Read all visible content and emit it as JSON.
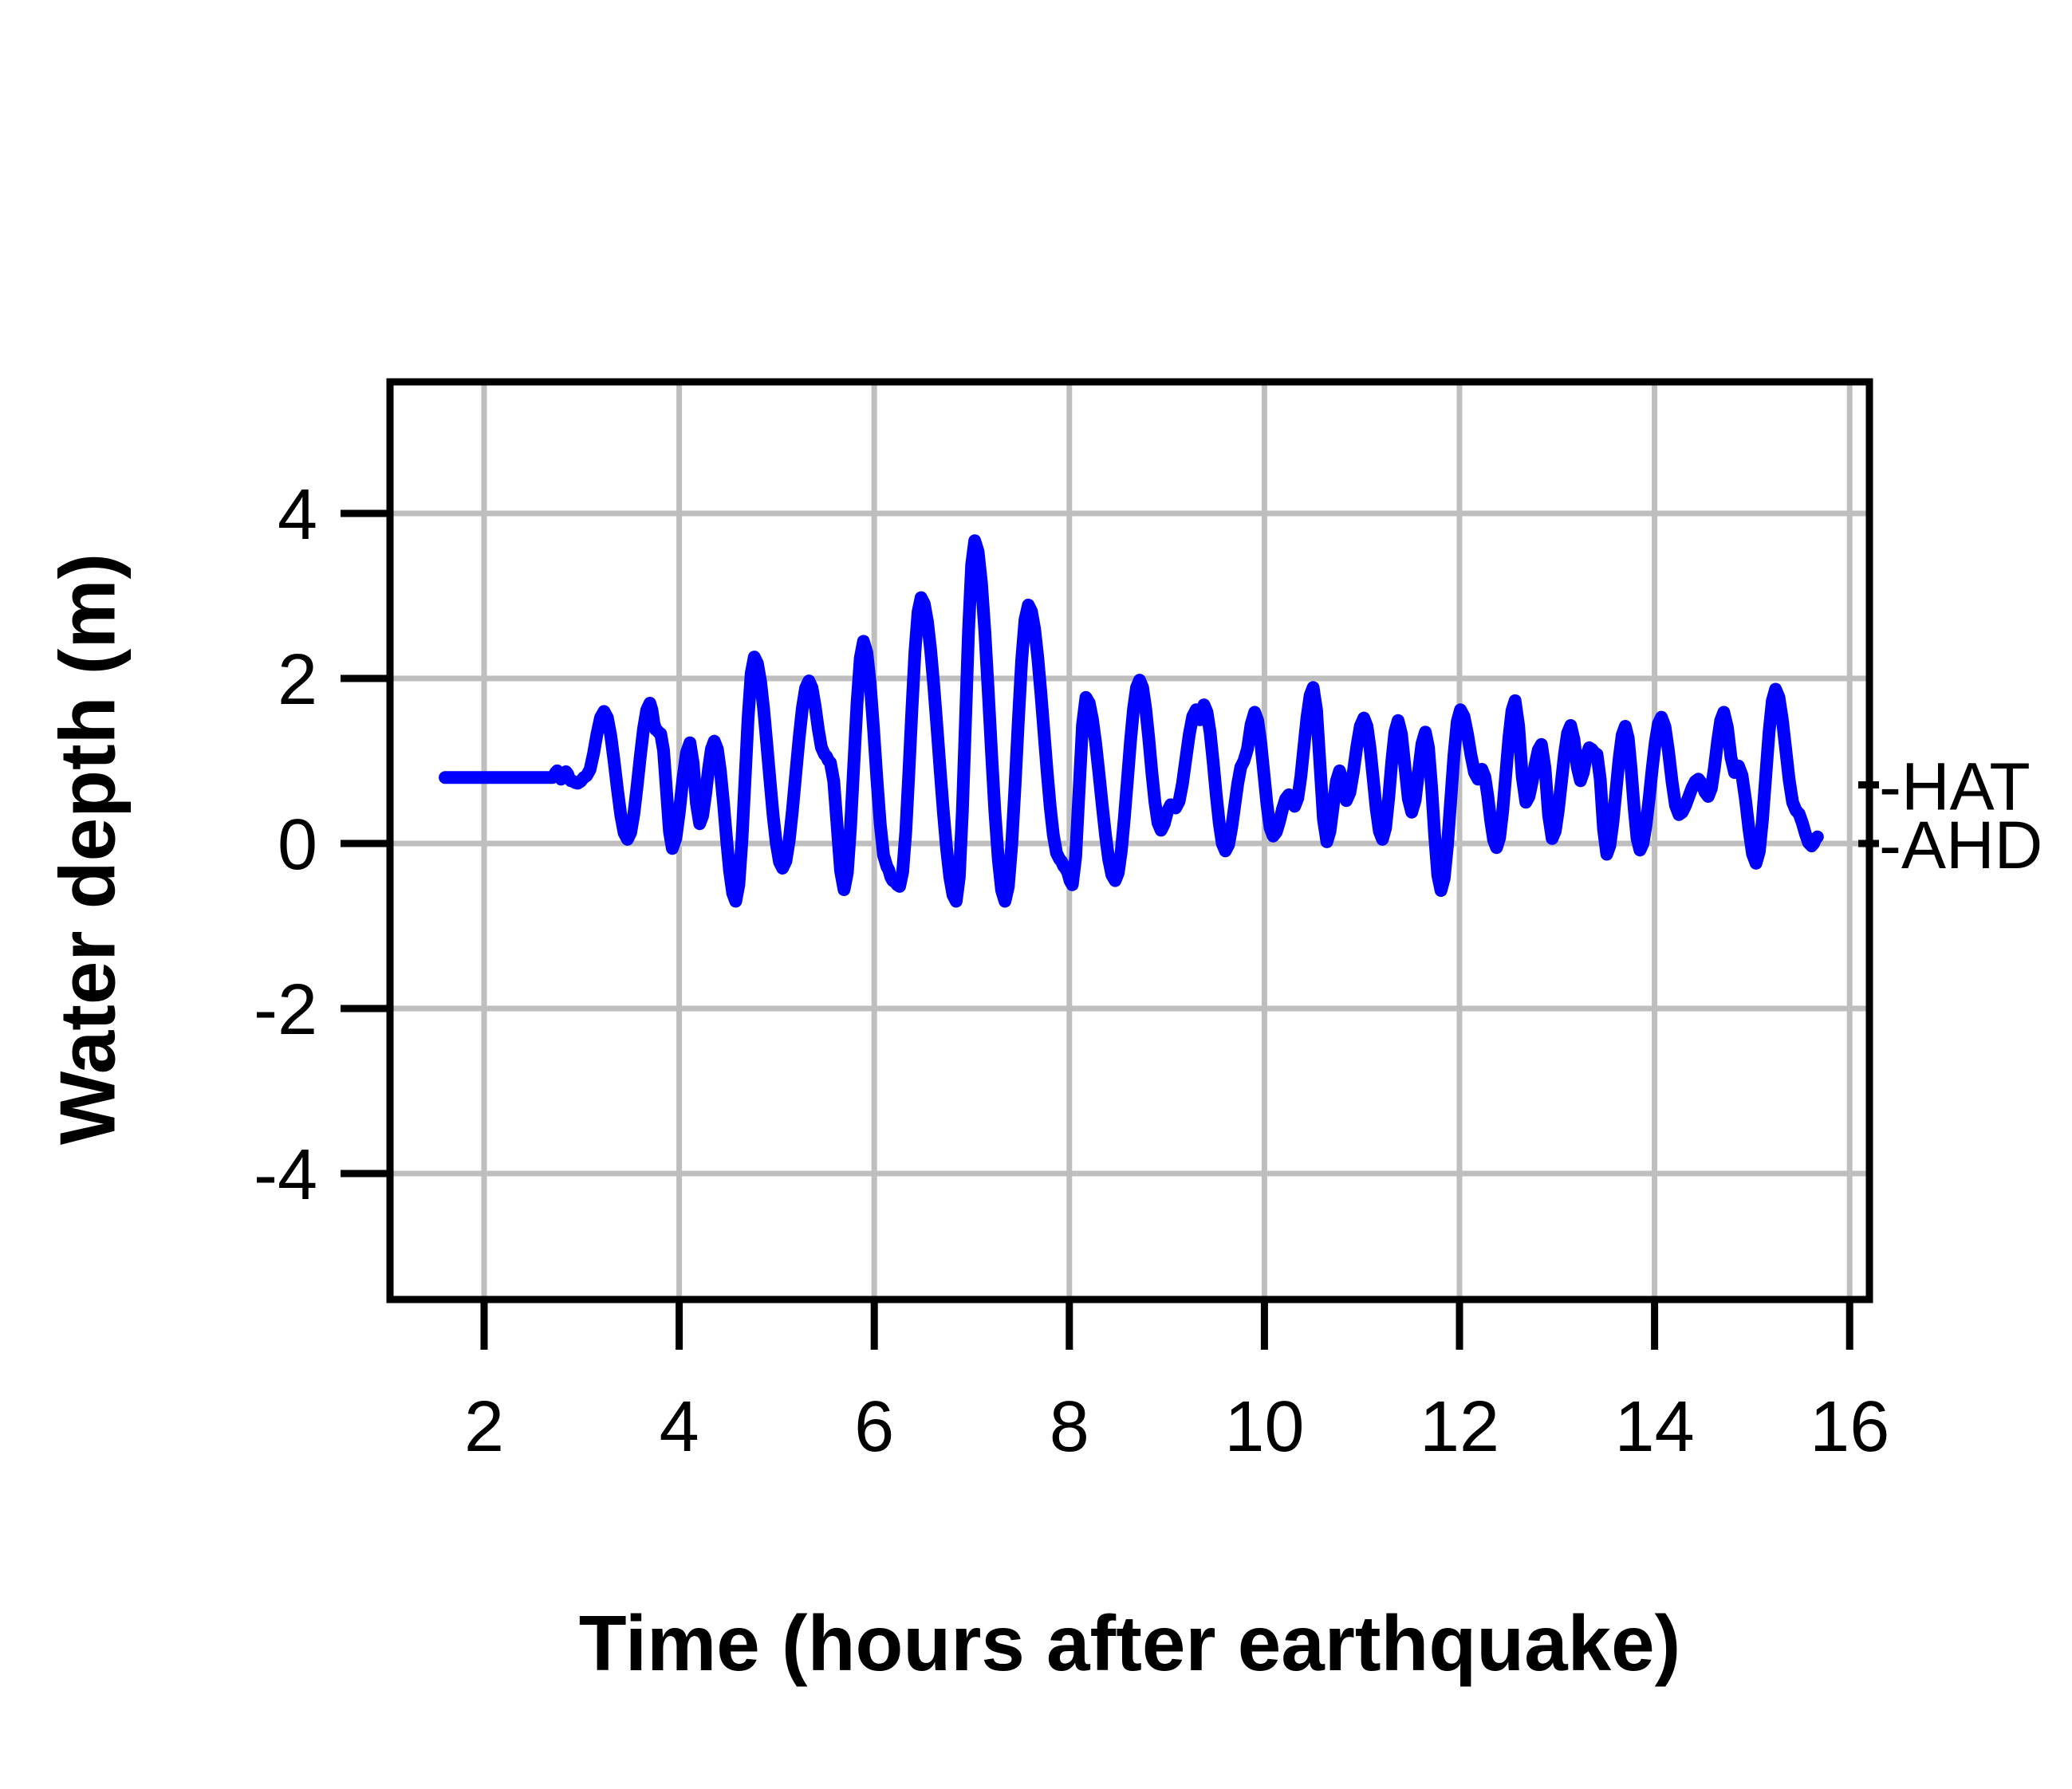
{
  "chart_data": {
    "type": "line",
    "title": "",
    "xlabel": "Time (hours after earthquake)",
    "ylabel": "Water depth (m)",
    "x_ticks": [
      2,
      4,
      6,
      8,
      10,
      12,
      14,
      16
    ],
    "y_ticks": [
      -4,
      -2,
      0,
      2,
      4
    ],
    "xlim": [
      1.04,
      16.2
    ],
    "ylim": [
      -5.55,
      5.6
    ],
    "grid": true,
    "legend": "none",
    "colors": {
      "line": "#0000ff",
      "grid": "#bebebe",
      "axis": "#000000",
      "background": "#ffffff"
    },
    "reference_levels": [
      {
        "key": "hat",
        "label": "-HAT",
        "value_m": 0.71
      },
      {
        "key": "ahd",
        "label": "-AHD",
        "value_m": 0.0
      }
    ],
    "series": [
      {
        "name": "water-depth",
        "points_t_hours_depth_m": [
          [
            1.6,
            0.8
          ],
          [
            2.7,
            0.8
          ],
          [
            2.75,
            0.88
          ],
          [
            2.79,
            0.78
          ],
          [
            2.84,
            0.87
          ],
          [
            2.89,
            0.76
          ],
          [
            2.96,
            0.73
          ],
          [
            3.05,
            0.82
          ],
          [
            3.23,
            1.6
          ],
          [
            3.47,
            0.05
          ],
          [
            3.7,
            1.7
          ],
          [
            3.76,
            1.38
          ],
          [
            3.81,
            1.33
          ],
          [
            3.93,
            -0.06
          ],
          [
            4.11,
            1.22
          ],
          [
            4.21,
            0.24
          ],
          [
            4.36,
            1.24
          ],
          [
            4.58,
            -0.7
          ],
          [
            4.77,
            2.26
          ],
          [
            5.06,
            -0.3
          ],
          [
            5.33,
            1.97
          ],
          [
            5.49,
            1.08
          ],
          [
            5.55,
            0.98
          ],
          [
            5.69,
            -0.56
          ],
          [
            5.89,
            2.45
          ],
          [
            6.13,
            -0.28
          ],
          [
            6.19,
            -0.45
          ],
          [
            6.26,
            -0.52
          ],
          [
            6.48,
            2.98
          ],
          [
            6.84,
            -0.7
          ],
          [
            7.03,
            3.67
          ],
          [
            7.34,
            -0.7
          ],
          [
            7.58,
            2.89
          ],
          [
            7.9,
            -0.19
          ],
          [
            7.96,
            -0.3
          ],
          [
            8.03,
            -0.5
          ],
          [
            8.17,
            1.77
          ],
          [
            8.47,
            -0.45
          ],
          [
            8.72,
            1.98
          ],
          [
            8.94,
            0.16
          ],
          [
            9.04,
            0.47
          ],
          [
            9.09,
            0.43
          ],
          [
            9.3,
            1.62
          ],
          [
            9.34,
            1.5
          ],
          [
            9.38,
            1.68
          ],
          [
            9.6,
            -0.09
          ],
          [
            9.79,
            1.0
          ],
          [
            9.9,
            1.59
          ],
          [
            10.09,
            0.09
          ],
          [
            10.25,
            0.59
          ],
          [
            10.31,
            0.45
          ],
          [
            10.5,
            1.89
          ],
          [
            10.64,
            0.02
          ],
          [
            10.77,
            0.88
          ],
          [
            10.84,
            0.52
          ],
          [
            11.02,
            1.52
          ],
          [
            11.21,
            0.05
          ],
          [
            11.37,
            1.49
          ],
          [
            11.51,
            0.38
          ],
          [
            11.65,
            1.35
          ],
          [
            11.81,
            -0.57
          ],
          [
            12.01,
            1.62
          ],
          [
            12.19,
            0.78
          ],
          [
            12.23,
            0.9
          ],
          [
            12.38,
            -0.05
          ],
          [
            12.57,
            1.73
          ],
          [
            12.68,
            0.5
          ],
          [
            12.84,
            1.2
          ],
          [
            12.95,
            0.06
          ],
          [
            13.14,
            1.43
          ],
          [
            13.24,
            0.76
          ],
          [
            13.33,
            1.16
          ],
          [
            13.41,
            1.08
          ],
          [
            13.51,
            -0.13
          ],
          [
            13.7,
            1.42
          ],
          [
            13.85,
            -0.08
          ],
          [
            14.07,
            1.53
          ],
          [
            14.25,
            0.35
          ],
          [
            14.45,
            0.78
          ],
          [
            14.55,
            0.57
          ],
          [
            14.71,
            1.59
          ],
          [
            14.82,
            0.86
          ],
          [
            14.86,
            0.94
          ],
          [
            15.04,
            -0.24
          ],
          [
            15.24,
            1.87
          ],
          [
            15.45,
            0.4
          ],
          [
            15.61,
            -0.03
          ],
          [
            15.67,
            0.08
          ]
        ]
      }
    ]
  }
}
